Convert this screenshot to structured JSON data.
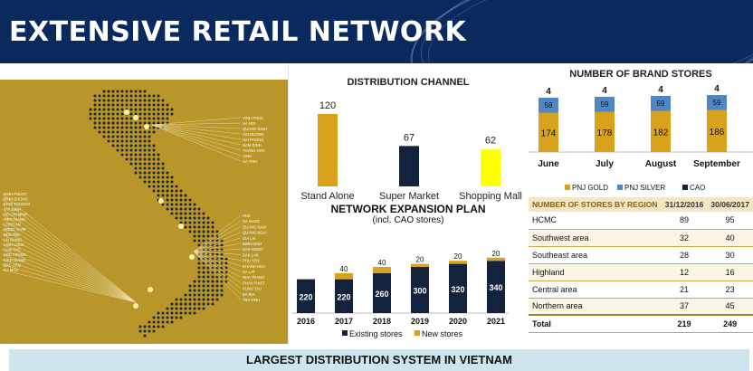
{
  "title": "EXTENSIVE RETAIL NETWORK",
  "footer": "LARGEST DISTRIBUTION SYSTEM IN VIETNAM",
  "colors": {
    "header_bg": "#0a2a5e",
    "gold": "#d9a21c",
    "navy": "#13223d",
    "yellow": "#ffff00",
    "silver": "#4f86c6",
    "map_bg": "#b8962a"
  },
  "map": {
    "north_labels": [
      "VINH PHUC",
      "HA NOI",
      "QUANG NINH",
      "HAI DUONG",
      "HAI PHONG",
      "NAM DINH",
      "THANH HOA",
      "VINH",
      "HA TINH"
    ],
    "west_labels": [
      "BINH PHUOC",
      "BINH DUONG",
      "KHOI THUONG",
      "TAY NINH",
      "HO CHI MINH",
      "TIEN GIANG",
      "LONG AN",
      "DONG THAP",
      "BEN TRE",
      "AN GIANG",
      "VINH LONG",
      "CAN THO",
      "SOC TRANG",
      "KIEN GIANG",
      "BAC LIEU",
      "CA MAU"
    ],
    "east_labels": [
      "HUE",
      "DA NANG",
      "QUANG NAM",
      "QUANG NGAI",
      "GIA LAI",
      "BINH DINH",
      "DAK NONG",
      "DAK LAK",
      "PHU YEN",
      "KHANH HOA",
      "DA LAT",
      "NHA TRANG",
      "PHAN THIET",
      "VUNG TAU",
      "BA RIA",
      "TRA VINH"
    ]
  },
  "charts": [
    {
      "chart_data": {
        "type": "bar",
        "title": "DISTRIBUTION CHANNEL",
        "categories": [
          "Stand Alone",
          "Super Market",
          "Shopping Mall"
        ],
        "values": [
          120,
          67,
          62
        ],
        "colors": [
          "#d9a21c",
          "#13223d",
          "#ffff00"
        ],
        "grid": false,
        "legend": "none"
      }
    },
    {
      "chart_data": {
        "type": "bar",
        "stacked": true,
        "title": "NETWORK EXPANSION PLAN",
        "subtitle": "(incl. CAO stores)",
        "categories": [
          "2016",
          "2017",
          "2018",
          "2019",
          "2020",
          "2021"
        ],
        "series": [
          {
            "name": "Existing stores",
            "values": [
              220,
              220,
              260,
              300,
              320,
              340
            ],
            "color": "#13223d"
          },
          {
            "name": "New stores",
            "values": [
              0,
              40,
              40,
              20,
              20,
              20
            ],
            "color": "#d9a21c"
          }
        ],
        "legend": "bottom",
        "grid": false
      }
    },
    {
      "chart_data": {
        "type": "bar",
        "stacked": true,
        "title": "NUMBER OF BRAND STORES",
        "categories": [
          "June",
          "July",
          "August",
          "September"
        ],
        "series": [
          {
            "name": "PNJ GOLD",
            "values": [
              174,
              178,
              182,
              186
            ],
            "color": "#d9a21c"
          },
          {
            "name": "PNJ SILVER",
            "values": [
              59,
              59,
              59,
              59
            ],
            "color": "#4f86c6"
          },
          {
            "name": "CAO",
            "values": [
              4,
              4,
              4,
              4
            ],
            "color": "#13223d"
          }
        ],
        "legend": "bottom",
        "grid": false
      }
    },
    {
      "chart_data": {
        "type": "table",
        "columns": [
          "NUMBER OF STORES BY REGION",
          "31/12/2016",
          "30/06/2017"
        ],
        "rows": [
          [
            "HCMC",
            "89",
            "95"
          ],
          [
            "Southwest area",
            "32",
            "40"
          ],
          [
            "Southeast area",
            "28",
            "30"
          ],
          [
            "Highland",
            "12",
            "16"
          ],
          [
            "Central area",
            "21",
            "23"
          ],
          [
            "Northern area",
            "37",
            "45"
          ],
          [
            "Total",
            "219",
            "249"
          ]
        ]
      }
    }
  ]
}
